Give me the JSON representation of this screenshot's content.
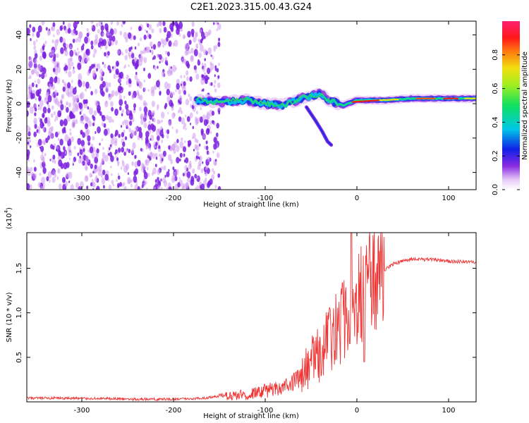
{
  "title": "C2E1.2023.315.00.43.G24",
  "colors": {
    "snr_line": "#f03434",
    "scatter_cloud": "#7a1fe0",
    "scatter_light": "#cf9bf0"
  },
  "chart_data": [
    {
      "type": "heatmap",
      "name": "spectrogram",
      "xlabel": "Height of straight line (km)",
      "ylabel": "Frequency (Hz)",
      "xlim": [
        -360,
        130
      ],
      "ylim": [
        -50,
        48
      ],
      "x_ticks": [
        -300,
        -200,
        -100,
        0,
        100
      ],
      "y_ticks": [
        -40,
        -20,
        0,
        20,
        40
      ],
      "grid": false,
      "colorbar": {
        "label": "Normalized spectral amplitude",
        "range": [
          0.0,
          1.0
        ],
        "ticks": [
          0.0,
          0.2,
          0.4,
          0.6,
          0.8
        ],
        "colormap": "rainbow (purple-blue-cyan-green-yellow-red-magenta)"
      },
      "features": {
        "noise_region_x": [
          -360,
          -150
        ],
        "signal_track": [
          {
            "x": -175,
            "y": 2
          },
          {
            "x": -150,
            "y": 1
          },
          {
            "x": -120,
            "y": 2
          },
          {
            "x": -100,
            "y": 0
          },
          {
            "x": -80,
            "y": -1
          },
          {
            "x": -60,
            "y": 3
          },
          {
            "x": -40,
            "y": 6
          },
          {
            "x": -30,
            "y": 2
          },
          {
            "x": -15,
            "y": -1
          },
          {
            "x": 0,
            "y": 2
          },
          {
            "x": 30,
            "y": 2
          },
          {
            "x": 60,
            "y": 3
          },
          {
            "x": 100,
            "y": 3
          },
          {
            "x": 130,
            "y": 3
          }
        ],
        "tail_track": [
          {
            "x": -55,
            "y": -2
          },
          {
            "x": -45,
            "y": -10
          },
          {
            "x": -38,
            "y": -16
          },
          {
            "x": -32,
            "y": -22
          },
          {
            "x": -28,
            "y": -24
          }
        ]
      }
    },
    {
      "type": "line",
      "name": "snr",
      "xlabel": "Height of straight line (km)",
      "ylabel": "SNR (10 * v/v)",
      "y_multiplier": "(x10",
      "y_multiplier_exp": "4",
      "y_multiplier_close": ")",
      "xlim": [
        -360,
        130
      ],
      "ylim": [
        0,
        1.9
      ],
      "x_ticks": [
        -300,
        -200,
        -100,
        0,
        100
      ],
      "y_ticks": [
        0.5,
        1.0,
        1.5
      ],
      "y_tick_labels": [
        "0.5",
        "1.0",
        "1.5"
      ],
      "grid": false,
      "series": [
        {
          "x": [
            -360,
            -300,
            -250,
            -200,
            -170,
            -150,
            -120,
            -100,
            -80,
            -60,
            -50,
            -40,
            -30,
            -20,
            -10,
            -5,
            0,
            5,
            10,
            20,
            30,
            40,
            50,
            60,
            80,
            100,
            120,
            130
          ],
          "y": [
            0.04,
            0.04,
            0.03,
            0.03,
            0.04,
            0.06,
            0.08,
            0.12,
            0.18,
            0.28,
            0.42,
            0.55,
            0.7,
            0.85,
            0.95,
            1.05,
            1.15,
            1.22,
            1.3,
            1.38,
            1.48,
            1.55,
            1.58,
            1.6,
            1.6,
            1.58,
            1.57,
            1.57
          ]
        }
      ]
    }
  ]
}
